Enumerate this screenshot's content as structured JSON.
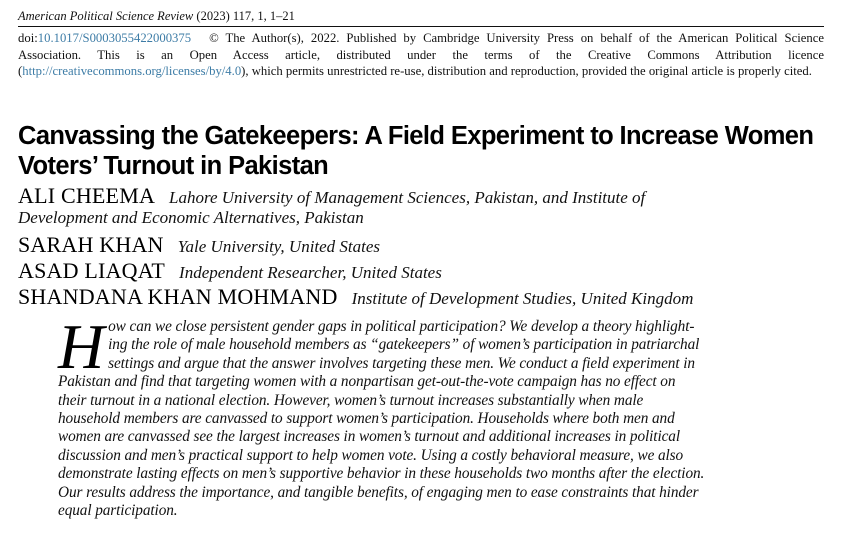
{
  "journal": {
    "name": "American Political Science Review",
    "citation": "(2023) 117, 1, 1–21"
  },
  "license": {
    "doi_label": "doi:",
    "doi": "10.1017/S0003055422000375",
    "copyright": "© The Author(s), 2022. Published by Cambridge University Press on behalf of the American Political Science Association. This is an Open Access article, distributed under the terms of the Creative Commons Attribution licence (",
    "license_url": "http://creativecommons.org/licenses/by/4.0",
    "closing": "), which permits unrestricted re-use, distribution and reproduction, provided the original article is properly cited."
  },
  "paper": {
    "title": "Canvassing the Gatekeepers: A Field Experiment to Increase Women Voters’ Turnout in Pakistan"
  },
  "authors": [
    {
      "name": "ALI CHEEMA",
      "affiliation": "Lahore University of Management Sciences, Pakistan, and Institute of",
      "affiliation_cont": "Development and Economic Alternatives, Pakistan"
    },
    {
      "name": "SARAH KHAN",
      "affiliation": "Yale University, United States"
    },
    {
      "name": "ASAD LIAQAT",
      "affiliation": "Independent Researcher, United States"
    },
    {
      "name": "SHANDANA KHAN MOHMAND",
      "affiliation": "Institute of Development Studies, United Kingdom"
    }
  ],
  "abstract": {
    "drop_cap": "H",
    "lines": [
      "ow can we close persistent gender gaps in political participation? We develop a theory highlight-",
      "ing the role of male household members as “gatekeepers” of women’s participation in patriarchal",
      "settings and argue that the answer involves targeting these men. We conduct a field experiment in",
      "Pakistan and find that targeting women with a nonpartisan get-out-the-vote campaign has no effect on",
      "their turnout in a national election. However, women’s turnout increases substantially when male",
      "household members are canvassed to support women’s participation. Households where both men and",
      "women are canvassed see the largest increases in women’s turnout and additional increases in political",
      "discussion and men’s practical support to help women vote. Using a costly behavioral measure, we also",
      "demonstrate lasting effects on men’s supportive behavior in these households two months after the election.",
      "Our results address the importance, and tangible benefits, of engaging men to ease constraints that hinder",
      "equal participation."
    ]
  }
}
